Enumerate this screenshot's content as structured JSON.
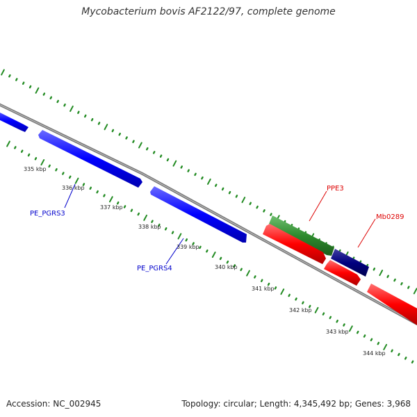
{
  "title": "Mycobacterium bovis AF2122/97, complete genome",
  "footer": {
    "accession": "Accession: NC_002945",
    "summary": "Topology: circular; Length: 4,345,492 bp; Genes: 3,968"
  },
  "colors": {
    "backbone": "#888888",
    "tick_dots": "#228B22",
    "forward_gene": "#0000ff",
    "reverse_gene": "#ff0000",
    "ppe_gene": "#2e8b2e",
    "mb0289_gene": "#000080",
    "forward_label": "#0000cc",
    "reverse_label": "#dd0000"
  },
  "scale_labels": [
    "335 kbp",
    "336 kbp",
    "337 kbp",
    "338 kbp",
    "339 kbp",
    "340 kbp",
    "341 kbp",
    "342 kbp",
    "343 kbp",
    "344 kbp"
  ],
  "genes": [
    {
      "name": "",
      "strand": "forward",
      "color": "#0000ff"
    },
    {
      "name": "PE_PGRS3",
      "strand": "forward",
      "color": "#0000ff"
    },
    {
      "name": "PE_PGRS4",
      "strand": "forward",
      "color": "#0000ff"
    },
    {
      "name": "PPE3",
      "strand": "reverse-outer",
      "color": "#2e8b2e"
    },
    {
      "name": "Mb0289",
      "strand": "reverse-outer",
      "color": "#000080"
    },
    {
      "name": "",
      "strand": "reverse",
      "color": "#ff0000"
    },
    {
      "name": "",
      "strand": "reverse",
      "color": "#ff0000"
    },
    {
      "name": "",
      "strand": "reverse",
      "color": "#ff0000"
    }
  ]
}
